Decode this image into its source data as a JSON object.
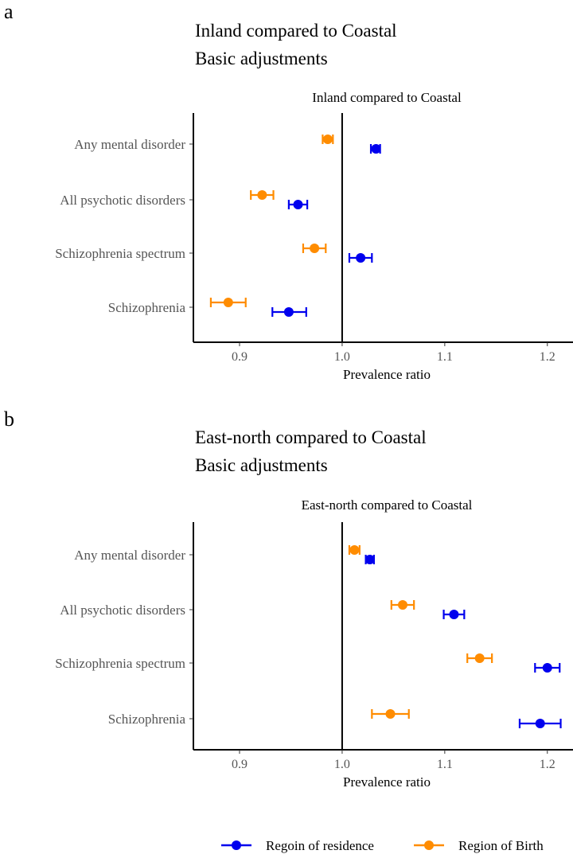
{
  "panels": [
    {
      "letter": "a",
      "title": "Inland compared to Coastal",
      "subtitle": "Basic adjustments",
      "strip": "Inland compared to Coastal"
    },
    {
      "letter": "b",
      "title": "East-north compared to Coastal",
      "subtitle": "Basic adjustments",
      "strip": "East-north compared to Coastal"
    }
  ],
  "legend": {
    "items": [
      {
        "label": "Regoin of residence",
        "color": "#0000ee"
      },
      {
        "label": "Region of Birth",
        "color": "#ff8c00"
      }
    ]
  },
  "chart_data": [
    {
      "type": "scatter",
      "title": "Inland compared to Coastal",
      "subtitle": "Basic adjustments",
      "facet": "Inland compared to Coastal",
      "xlabel": "Prevalence ratio",
      "ylabel": "",
      "categories": [
        "Any mental disorder",
        "All psychotic disorders",
        "Schizophrenia spectrum",
        "Schizophrenia"
      ],
      "xlim": [
        0.855,
        1.225
      ],
      "xticks": [
        0.9,
        1.0,
        1.1,
        1.2
      ],
      "xtick_labels": [
        "0.9",
        "1.0",
        "1.1",
        "1.2"
      ],
      "reference_line": 1.0,
      "grid": false,
      "series": [
        {
          "name": "Regoin of residence",
          "color": "#0000ee",
          "estimate": [
            1.033,
            0.957,
            1.018,
            0.948
          ],
          "lower": [
            1.028,
            0.948,
            1.007,
            0.932
          ],
          "upper": [
            1.037,
            0.966,
            1.029,
            0.965
          ]
        },
        {
          "name": "Region of Birth",
          "color": "#ff8c00",
          "estimate": [
            0.986,
            0.922,
            0.973,
            0.889
          ],
          "lower": [
            0.981,
            0.911,
            0.962,
            0.872
          ],
          "upper": [
            0.991,
            0.933,
            0.984,
            0.906
          ]
        }
      ]
    },
    {
      "type": "scatter",
      "title": "East-north compared to Coastal",
      "subtitle": "Basic adjustments",
      "facet": "East-north compared to Coastal",
      "xlabel": "Prevalence ratio",
      "ylabel": "",
      "categories": [
        "Any mental disorder",
        "All psychotic disorders",
        "Schizophrenia spectrum",
        "Schizophrenia"
      ],
      "xlim": [
        0.855,
        1.225
      ],
      "xticks": [
        0.9,
        1.0,
        1.1,
        1.2
      ],
      "xtick_labels": [
        "0.9",
        "1.0",
        "1.1",
        "1.2"
      ],
      "reference_line": 1.0,
      "grid": false,
      "series": [
        {
          "name": "Regoin of residence",
          "color": "#0000ee",
          "estimate": [
            1.027,
            1.109,
            1.2,
            1.193
          ],
          "lower": [
            1.023,
            1.099,
            1.188,
            1.173
          ],
          "upper": [
            1.031,
            1.119,
            1.212,
            1.213
          ]
        },
        {
          "name": "Region of Birth",
          "color": "#ff8c00",
          "estimate": [
            1.012,
            1.059,
            1.134,
            1.047
          ],
          "lower": [
            1.007,
            1.048,
            1.122,
            1.029
          ],
          "upper": [
            1.017,
            1.07,
            1.146,
            1.065
          ]
        }
      ]
    }
  ]
}
